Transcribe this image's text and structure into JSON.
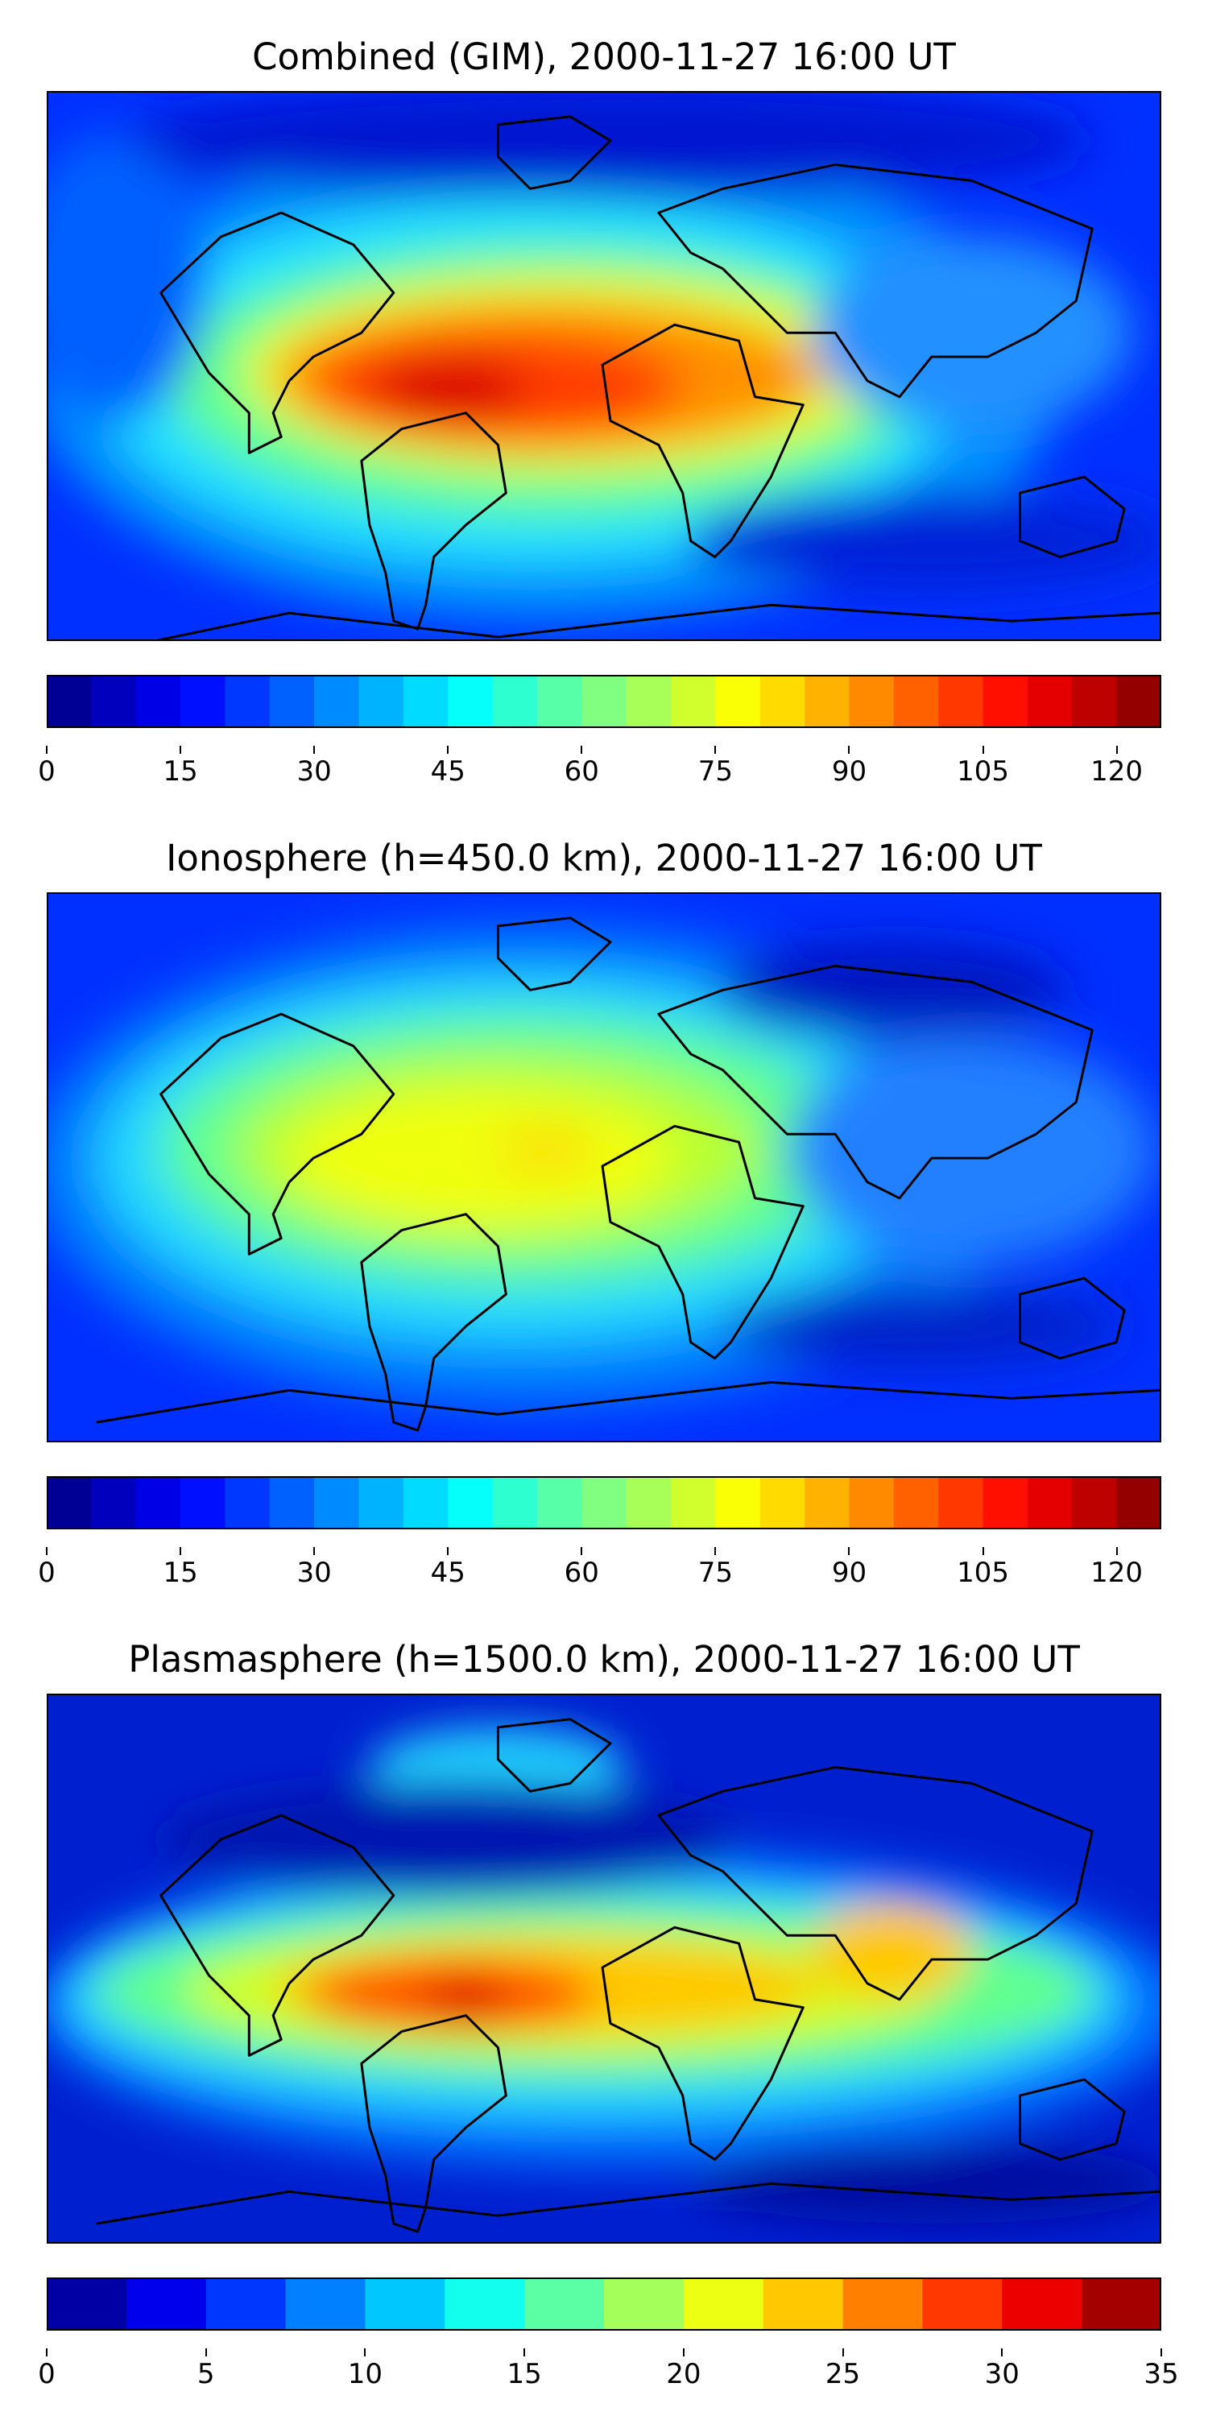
{
  "chart_data": [
    {
      "type": "heatmap",
      "title": "Combined (GIM), 2000-11-27 16:00 UT",
      "colorbar": {
        "min": 0,
        "max": 125,
        "step": 5,
        "ticks": [
          0,
          15,
          30,
          45,
          60,
          75,
          90,
          105,
          120
        ],
        "colormap": "jet"
      },
      "peak_value": 118,
      "hotspot": {
        "region": "South America / tropical Atlantic",
        "level": 110
      }
    },
    {
      "type": "heatmap",
      "title": "Ionosphere  (h=450.0 km), 2000-11-27 16:00 UT",
      "colorbar": {
        "min": 0,
        "max": 125,
        "step": 5,
        "ticks": [
          0,
          15,
          30,
          45,
          60,
          75,
          90,
          105,
          120
        ],
        "colormap": "jet"
      },
      "peak_value": 85,
      "hotspot": {
        "region": "South America / tropical Atlantic",
        "level": 82
      }
    },
    {
      "type": "heatmap",
      "title": "Plasmasphere (h=1500.0 km), 2000-11-27 16:00 UT",
      "colorbar": {
        "min": 0,
        "max": 35,
        "step": 2.5,
        "ticks": [
          0,
          5,
          10,
          15,
          20,
          25,
          30,
          35
        ],
        "colormap": "jet"
      },
      "peak_value": 31,
      "hotspot": {
        "region": "Brazil",
        "level": 30
      }
    }
  ]
}
